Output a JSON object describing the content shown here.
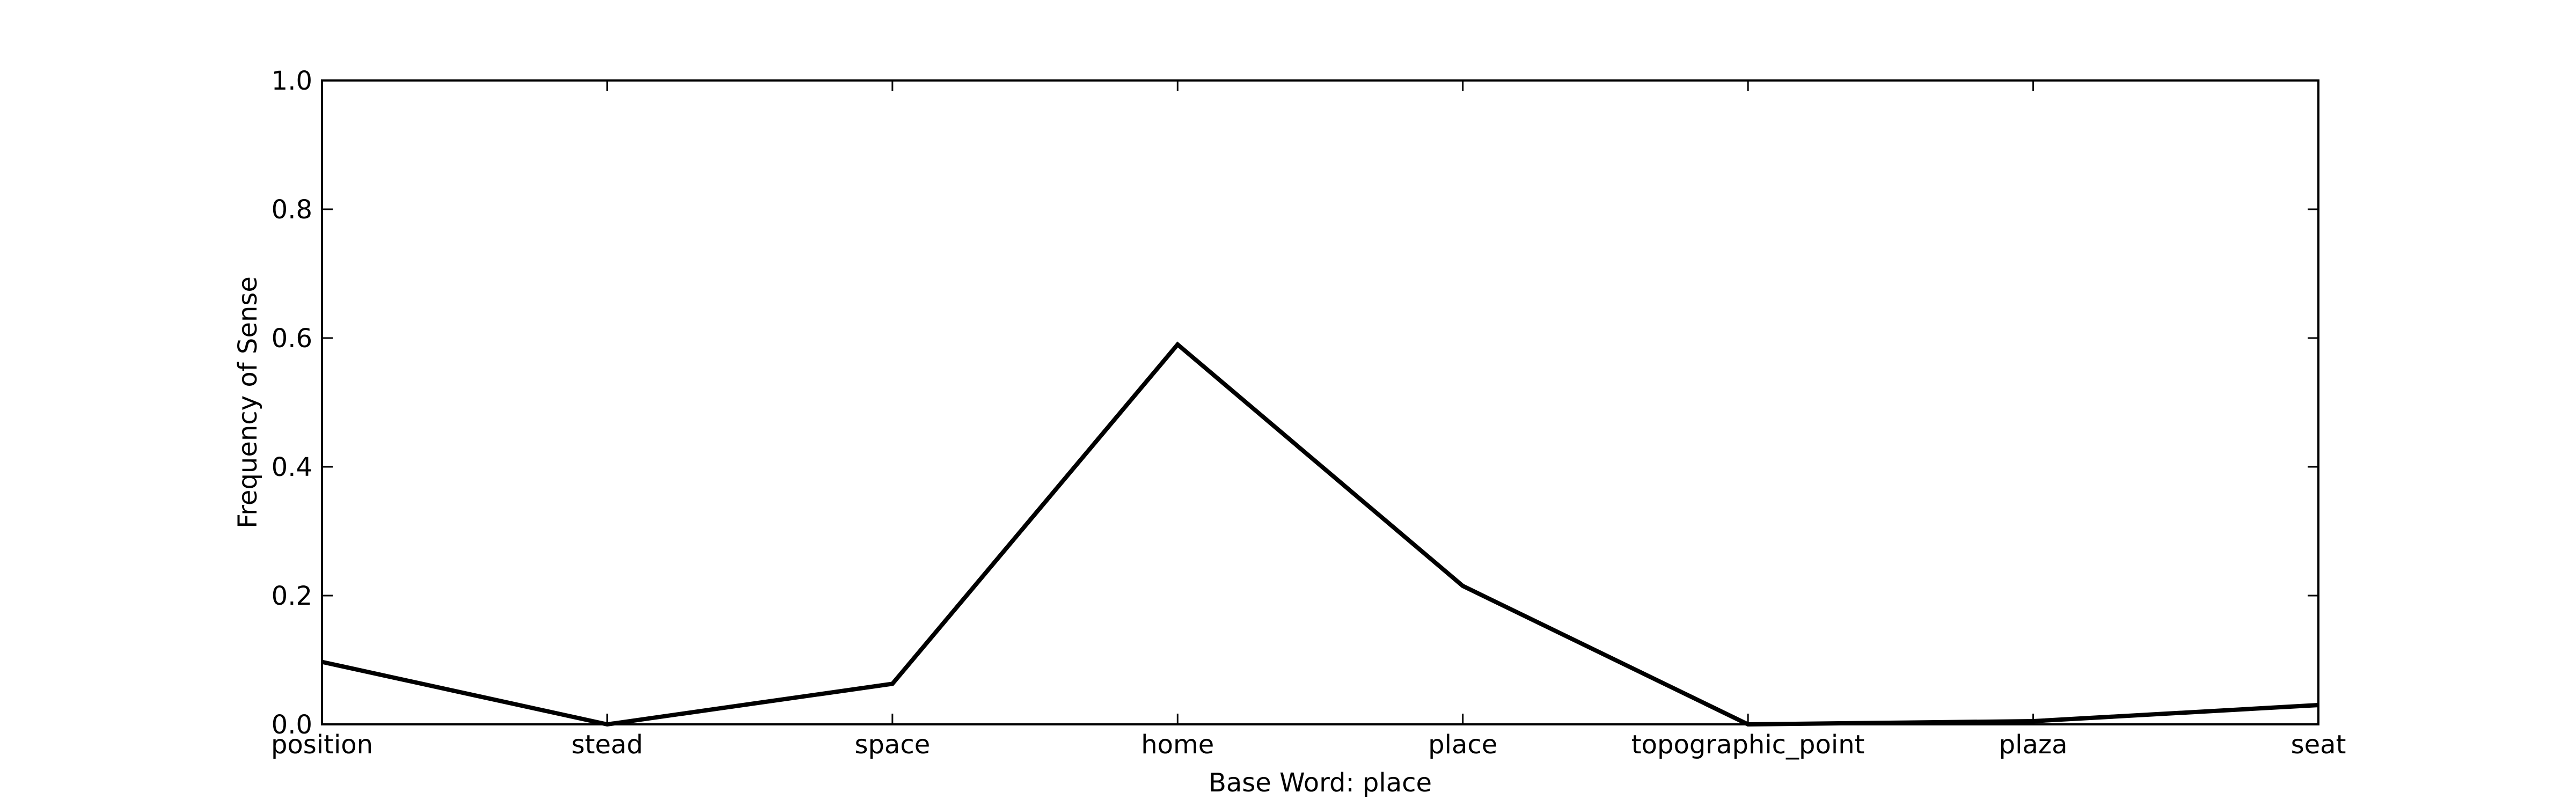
{
  "chart_data": {
    "type": "line",
    "title": "",
    "xlabel": "Base Word: place",
    "ylabel": "Frequency of Sense",
    "categories": [
      "position",
      "stead",
      "space",
      "home",
      "place",
      "topographic_point",
      "plaza",
      "seat"
    ],
    "series": [
      {
        "values": [
          0.097,
          0.0,
          0.063,
          0.59,
          0.215,
          0.0,
          0.005,
          0.03
        ],
        "color": "#000000"
      }
    ],
    "ylim": [
      0.0,
      1.0
    ],
    "yticks": [
      "0.0",
      "0.2",
      "0.4",
      "0.6",
      "0.8",
      "1.0"
    ],
    "grid": false,
    "legend": "none"
  }
}
